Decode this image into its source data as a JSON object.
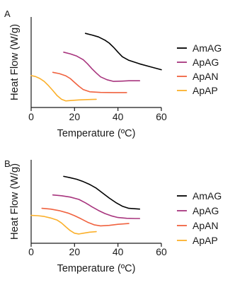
{
  "chart_data": [
    {
      "type": "line",
      "panel_label": "A",
      "ylabel": "Heat Flow (W/g)",
      "xlabel": "Temperature (ºC)",
      "xlim": [
        0,
        60
      ],
      "x_ticks": [
        "0",
        "20",
        "40",
        "60"
      ],
      "y_ticks_shown": false,
      "grid": false,
      "legend": "right",
      "series": [
        {
          "name": "AmAG",
          "color": "#000000",
          "points": [
            [
              25,
              10.0
            ],
            [
              28,
              9.75
            ],
            [
              31,
              9.45
            ],
            [
              34,
              8.95
            ],
            [
              36,
              8.5
            ],
            [
              38,
              7.85
            ],
            [
              40,
              7.1
            ],
            [
              42,
              6.4
            ],
            [
              45,
              5.85
            ],
            [
              50,
              5.3
            ],
            [
              55,
              4.85
            ],
            [
              60,
              4.4
            ]
          ]
        },
        {
          "name": "ApAG",
          "color": "#a8357e",
          "points": [
            [
              15,
              7.1
            ],
            [
              18,
              6.85
            ],
            [
              21,
              6.5
            ],
            [
              24,
              5.95
            ],
            [
              26,
              5.3
            ],
            [
              28,
              4.55
            ],
            [
              30,
              3.9
            ],
            [
              32,
              3.3
            ],
            [
              35,
              2.85
            ],
            [
              38,
              2.6
            ],
            [
              42,
              2.65
            ],
            [
              45,
              2.7
            ],
            [
              50,
              2.7
            ]
          ]
        },
        {
          "name": "ApAN",
          "color": "#f0623f",
          "points": [
            [
              10,
              4.0
            ],
            [
              13,
              3.8
            ],
            [
              16,
              3.45
            ],
            [
              18,
              3.05
            ],
            [
              20,
              2.45
            ],
            [
              22,
              1.85
            ],
            [
              24,
              1.35
            ],
            [
              27,
              1.0
            ],
            [
              32,
              0.9
            ],
            [
              38,
              0.88
            ],
            [
              44,
              0.88
            ]
          ]
        },
        {
          "name": "ApAP",
          "color": "#fbb02b",
          "points": [
            [
              0,
              3.5
            ],
            [
              2,
              3.35
            ],
            [
              4,
              3.05
            ],
            [
              6,
              2.6
            ],
            [
              8,
              1.95
            ],
            [
              10,
              1.2
            ],
            [
              12,
              0.4
            ],
            [
              14,
              -0.15
            ],
            [
              16,
              -0.4
            ],
            [
              18,
              -0.35
            ],
            [
              22,
              -0.25
            ],
            [
              26,
              -0.2
            ],
            [
              30,
              -0.15
            ]
          ]
        }
      ],
      "ylim": [
        -1.2,
        11
      ]
    },
    {
      "type": "line",
      "panel_label": "B",
      "ylabel": "Heat Flow (W/g)",
      "xlabel": "Temperature (ºC)",
      "xlim": [
        0,
        60
      ],
      "x_ticks": [
        "0",
        "20",
        "40",
        "60"
      ],
      "y_ticks_shown": false,
      "grid": false,
      "legend": "right",
      "series": [
        {
          "name": "AmAG",
          "color": "#000000",
          "points": [
            [
              15,
              10.0
            ],
            [
              18,
              9.75
            ],
            [
              21,
              9.45
            ],
            [
              24,
              9.0
            ],
            [
              27,
              8.45
            ],
            [
              30,
              7.75
            ],
            [
              33,
              6.8
            ],
            [
              36,
              5.85
            ],
            [
              39,
              5.0
            ],
            [
              42,
              4.3
            ],
            [
              45,
              3.9
            ],
            [
              50,
              3.75
            ]
          ]
        },
        {
          "name": "ApAG",
          "color": "#a8357e",
          "points": [
            [
              10,
              6.45
            ],
            [
              14,
              6.3
            ],
            [
              18,
              6.05
            ],
            [
              22,
              5.6
            ],
            [
              25,
              4.95
            ],
            [
              28,
              4.2
            ],
            [
              31,
              3.5
            ],
            [
              34,
              2.9
            ],
            [
              37,
              2.45
            ],
            [
              40,
              2.15
            ],
            [
              44,
              2.0
            ],
            [
              48,
              1.95
            ],
            [
              50,
              1.95
            ]
          ]
        },
        {
          "name": "ApAN",
          "color": "#f0623f",
          "points": [
            [
              5,
              3.9
            ],
            [
              9,
              3.75
            ],
            [
              13,
              3.45
            ],
            [
              17,
              3.0
            ],
            [
              20,
              2.5
            ],
            [
              23,
              1.9
            ],
            [
              26,
              1.25
            ],
            [
              29,
              0.75
            ],
            [
              32,
              0.55
            ],
            [
              36,
              0.65
            ],
            [
              40,
              0.85
            ],
            [
              45,
              1.0
            ]
          ]
        },
        {
          "name": "ApAP",
          "color": "#fbb02b",
          "points": [
            [
              0,
              2.55
            ],
            [
              3,
              2.5
            ],
            [
              6,
              2.35
            ],
            [
              9,
              2.05
            ],
            [
              12,
              1.65
            ],
            [
              14,
              1.1
            ],
            [
              16,
              0.35
            ],
            [
              18,
              -0.35
            ],
            [
              20,
              -0.85
            ],
            [
              22,
              -1.0
            ],
            [
              24,
              -0.85
            ],
            [
              27,
              -0.65
            ],
            [
              30,
              -0.55
            ]
          ]
        }
      ],
      "ylim": [
        -2.5,
        11
      ]
    }
  ]
}
